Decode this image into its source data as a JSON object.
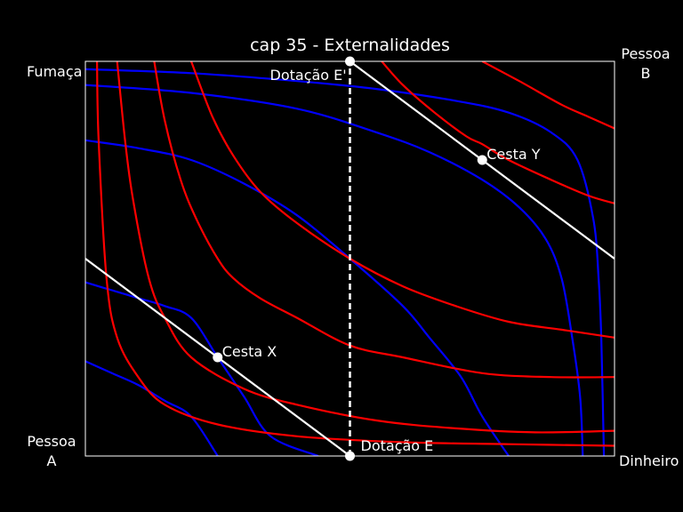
{
  "chart_data": {
    "type": "line",
    "title": "cap 35 - Externalidades",
    "xlabel": "Dinheiro",
    "ylabel": "Fumaça",
    "xlim": [
      0,
      1
    ],
    "ylim": [
      0,
      1
    ],
    "corners": {
      "top_left": "Fumaça",
      "top_right": [
        "Pessoa",
        "B"
      ],
      "bottom_left": [
        "Pessoa",
        "A"
      ],
      "bottom_right": "Dinheiro"
    },
    "colors": {
      "person_a": "#ff0000",
      "person_b": "#0000ff",
      "line": "#ffffff",
      "background": "#000000"
    },
    "indifference_a": [
      {
        "name": "",
        "points": [
          [
            0.022,
            1.0
          ],
          [
            0.025,
            0.8
          ],
          [
            0.04,
            0.45
          ],
          [
            0.06,
            0.3
          ],
          [
            0.1,
            0.2
          ],
          [
            0.15,
            0.13
          ],
          [
            0.25,
            0.08
          ],
          [
            0.4,
            0.05
          ],
          [
            0.6,
            0.035
          ],
          [
            0.8,
            0.03
          ],
          [
            1.0,
            0.026
          ]
        ]
      },
      {
        "name": "",
        "points": [
          [
            0.06,
            1.0
          ],
          [
            0.075,
            0.8
          ],
          [
            0.09,
            0.65
          ],
          [
            0.12,
            0.45
          ],
          [
            0.15,
            0.35
          ],
          [
            0.2,
            0.25
          ],
          [
            0.3,
            0.17
          ],
          [
            0.4,
            0.13
          ],
          [
            0.55,
            0.09
          ],
          [
            0.7,
            0.07
          ],
          [
            0.85,
            0.06
          ],
          [
            1.0,
            0.064
          ]
        ]
      },
      {
        "name": "",
        "points": [
          [
            0.13,
            1.0
          ],
          [
            0.15,
            0.85
          ],
          [
            0.18,
            0.7
          ],
          [
            0.21,
            0.6
          ],
          [
            0.25,
            0.5
          ],
          [
            0.28,
            0.45
          ],
          [
            0.33,
            0.4
          ],
          [
            0.4,
            0.35
          ],
          [
            0.5,
            0.28
          ],
          [
            0.6,
            0.25
          ],
          [
            0.75,
            0.21
          ],
          [
            0.88,
            0.2
          ],
          [
            1.0,
            0.2
          ]
        ]
      },
      {
        "name": "",
        "points": [
          [
            0.2,
            1.0
          ],
          [
            0.24,
            0.86
          ],
          [
            0.28,
            0.76
          ],
          [
            0.33,
            0.67
          ],
          [
            0.4,
            0.59
          ],
          [
            0.5,
            0.5
          ],
          [
            0.6,
            0.43
          ],
          [
            0.7,
            0.38
          ],
          [
            0.8,
            0.34
          ],
          [
            0.9,
            0.32
          ],
          [
            1.0,
            0.3
          ]
        ]
      },
      {
        "name": "",
        "points": [
          [
            0.56,
            1.0
          ],
          [
            0.6,
            0.94
          ],
          [
            0.66,
            0.87
          ],
          [
            0.72,
            0.81
          ],
          [
            0.75,
            0.79
          ],
          [
            0.8,
            0.75
          ],
          [
            0.88,
            0.7
          ],
          [
            0.95,
            0.66
          ],
          [
            1.0,
            0.64
          ]
        ]
      },
      {
        "name": "",
        "points": [
          [
            0.75,
            1.0
          ],
          [
            0.82,
            0.95
          ],
          [
            0.9,
            0.89
          ],
          [
            0.95,
            0.86
          ],
          [
            1.0,
            0.83
          ]
        ]
      }
    ],
    "indifference_b": [
      {
        "name": "",
        "points": [
          [
            0.0,
            0.24
          ],
          [
            0.05,
            0.21
          ],
          [
            0.1,
            0.18
          ],
          [
            0.15,
            0.14
          ],
          [
            0.2,
            0.1
          ],
          [
            0.25,
            0.0
          ]
        ]
      },
      {
        "name": "",
        "points": [
          [
            0.0,
            0.44
          ],
          [
            0.05,
            0.42
          ],
          [
            0.1,
            0.4
          ],
          [
            0.15,
            0.38
          ],
          [
            0.2,
            0.35
          ],
          [
            0.25,
            0.25
          ],
          [
            0.3,
            0.15
          ],
          [
            0.35,
            0.05
          ],
          [
            0.44,
            0.0
          ]
        ]
      },
      {
        "name": "",
        "points": [
          [
            0.0,
            0.8
          ],
          [
            0.1,
            0.78
          ],
          [
            0.2,
            0.75
          ],
          [
            0.3,
            0.69
          ],
          [
            0.4,
            0.61
          ],
          [
            0.5,
            0.5
          ],
          [
            0.6,
            0.38
          ],
          [
            0.65,
            0.3
          ],
          [
            0.71,
            0.2
          ],
          [
            0.75,
            0.1
          ],
          [
            0.8,
            0.0
          ]
        ]
      },
      {
        "name": "",
        "points": [
          [
            0.0,
            0.94
          ],
          [
            0.2,
            0.92
          ],
          [
            0.4,
            0.88
          ],
          [
            0.55,
            0.82
          ],
          [
            0.65,
            0.77
          ],
          [
            0.75,
            0.7
          ],
          [
            0.82,
            0.63
          ],
          [
            0.87,
            0.55
          ],
          [
            0.9,
            0.45
          ],
          [
            0.92,
            0.3
          ],
          [
            0.935,
            0.15
          ],
          [
            0.94,
            0.0
          ]
        ]
      },
      {
        "name": "",
        "points": [
          [
            0.0,
            0.98
          ],
          [
            0.2,
            0.97
          ],
          [
            0.4,
            0.95
          ],
          [
            0.55,
            0.93
          ],
          [
            0.7,
            0.9
          ],
          [
            0.8,
            0.87
          ],
          [
            0.88,
            0.82
          ],
          [
            0.93,
            0.75
          ],
          [
            0.96,
            0.6
          ],
          [
            0.97,
            0.45
          ],
          [
            0.975,
            0.3
          ],
          [
            0.98,
            0.0
          ]
        ]
      }
    ],
    "budget_lines": [
      {
        "name": "",
        "points": [
          [
            0.0,
            0.5
          ],
          [
            0.5,
            0.0
          ]
        ]
      },
      {
        "name": "",
        "points": [
          [
            0.5,
            1.0
          ],
          [
            1.0,
            0.5
          ]
        ]
      }
    ],
    "endowment_line": {
      "x": 0.5,
      "y0": 0.0,
      "y1": 1.0
    },
    "points": [
      {
        "label": "Cesta X",
        "x": 0.25,
        "y": 0.25
      },
      {
        "label": "Cesta Y",
        "x": 0.75,
        "y": 0.75
      },
      {
        "label": "Dotação E",
        "x": 0.5,
        "y": 0.0
      },
      {
        "label": "Dotação E'",
        "x": 0.5,
        "y": 1.0
      }
    ]
  }
}
